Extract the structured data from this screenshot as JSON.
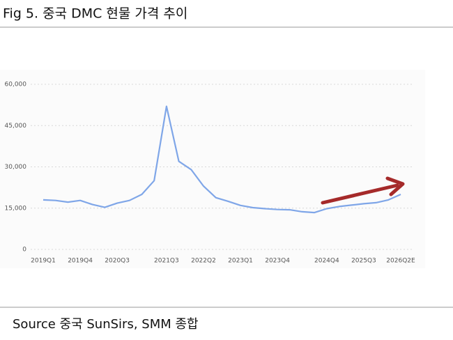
{
  "title": "Fig 5. 중국 DMC 현물 가격 추이",
  "source": "Source 중국 SunSirs, SMM 종합",
  "chart_data": {
    "type": "line",
    "categories": [
      "2019Q1",
      null,
      null,
      "2019Q4",
      null,
      null,
      "2020Q3",
      null,
      null,
      null,
      "2021Q3",
      null,
      null,
      "2022Q2",
      null,
      null,
      "2023Q1",
      null,
      null,
      "2023Q4",
      null,
      null,
      null,
      "2024Q4",
      null,
      null,
      "2025Q3",
      null,
      null,
      "2026Q2E"
    ],
    "values": [
      18000,
      17800,
      17200,
      17800,
      16300,
      15300,
      16800,
      17800,
      20000,
      25000,
      52000,
      32000,
      29000,
      23000,
      18800,
      17500,
      16000,
      15200,
      14800,
      14500,
      14400,
      13700,
      13400,
      14800,
      15600,
      16100,
      16600,
      17000,
      18000,
      20000
    ],
    "color": "#7fa6e8",
    "ylim": [
      0,
      60000
    ],
    "yticks": [
      {
        "value": 0,
        "label": "0"
      },
      {
        "value": 15000,
        "label": "15,000"
      },
      {
        "value": 30000,
        "label": "30,000"
      },
      {
        "value": 45000,
        "label": "45,000"
      },
      {
        "value": 60000,
        "label": "60,000"
      }
    ],
    "grid": true
  }
}
